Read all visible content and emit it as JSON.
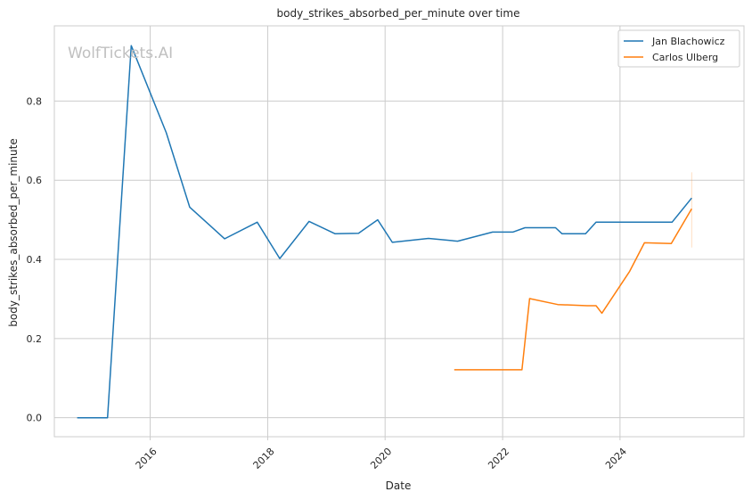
{
  "chart_data": {
    "type": "line",
    "title": "body_strikes_absorbed_per_minute over time",
    "xlabel": "Date",
    "ylabel": "body_strikes_absorbed_per_minute",
    "watermark": "WolfTickets.AI",
    "x_ticks": [
      "2016",
      "2018",
      "2020",
      "2022",
      "2024"
    ],
    "y_ticks": [
      "0.0",
      "0.2",
      "0.4",
      "0.6",
      "0.8"
    ],
    "xlim": [
      "2014-05-15",
      "2026-02-10"
    ],
    "ylim": [
      -0.048,
      0.99
    ],
    "grid": true,
    "legend_position": "top-right",
    "series": [
      {
        "name": "Jan Blachowicz",
        "color": "#1f77b4",
        "points": [
          [
            "2014-10-04",
            0.0
          ],
          [
            "2015-04-11",
            0.0
          ],
          [
            "2015-09-05",
            0.94
          ],
          [
            "2016-04-10",
            0.72
          ],
          [
            "2016-09-03",
            0.532
          ],
          [
            "2017-04-08",
            0.452
          ],
          [
            "2017-10-28",
            0.494
          ],
          [
            "2018-03-17",
            0.402
          ],
          [
            "2018-09-15",
            0.496
          ],
          [
            "2019-02-23",
            0.465
          ],
          [
            "2019-07-20",
            0.466
          ],
          [
            "2019-11-16",
            0.5
          ],
          [
            "2020-02-15",
            0.443
          ],
          [
            "2020-09-27",
            0.453
          ],
          [
            "2021-03-27",
            0.446
          ],
          [
            "2021-10-30",
            0.469
          ],
          [
            "2022-03-05",
            0.469
          ],
          [
            "2022-05-20",
            0.48
          ],
          [
            "2022-11-26",
            0.48
          ],
          [
            "2023-01-05",
            0.465
          ],
          [
            "2023-06-01",
            0.465
          ],
          [
            "2023-08-05",
            0.494
          ],
          [
            "2024-11-20",
            0.494
          ],
          [
            "2025-03-22",
            0.555
          ]
        ]
      },
      {
        "name": "Carlos Ulberg",
        "color": "#ff7f0e",
        "points": [
          [
            "2021-03-06",
            0.121
          ],
          [
            "2022-05-01",
            0.121
          ],
          [
            "2022-06-18",
            0.301
          ],
          [
            "2022-12-10",
            0.286
          ],
          [
            "2023-06-10",
            0.283
          ],
          [
            "2023-08-05",
            0.283
          ],
          [
            "2023-09-10",
            0.264
          ],
          [
            "2024-03-01",
            0.37
          ],
          [
            "2024-06-01",
            0.442
          ],
          [
            "2024-11-15",
            0.44
          ],
          [
            "2025-03-22",
            0.528
          ]
        ]
      }
    ]
  }
}
